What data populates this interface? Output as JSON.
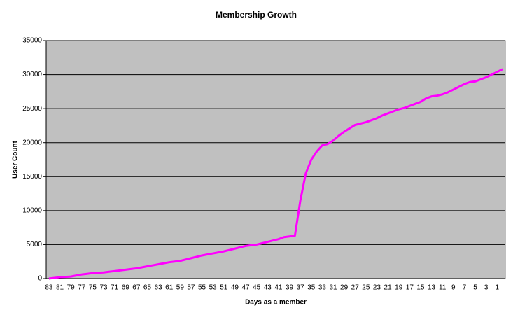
{
  "chart_data": {
    "type": "line",
    "title": "Membership Growth",
    "x_label": "Days as a member",
    "y_label": "User Count",
    "categories": [
      "83",
      null,
      "81",
      null,
      "79",
      null,
      "77",
      null,
      "75",
      null,
      "73",
      null,
      "71",
      null,
      "69",
      null,
      "67",
      null,
      "65",
      null,
      "63",
      null,
      "61",
      null,
      "59",
      null,
      "57",
      null,
      "55",
      null,
      "53",
      null,
      "51",
      null,
      "49",
      null,
      "47",
      null,
      "45",
      null,
      "43",
      null,
      "41",
      null,
      "39",
      null,
      "37",
      null,
      "35",
      null,
      "33",
      null,
      "31",
      null,
      "29",
      null,
      "27",
      null,
      "25",
      null,
      "23",
      null,
      "21",
      null,
      "19",
      null,
      "17",
      null,
      "15",
      null,
      "13",
      null,
      "11",
      null,
      "9",
      null,
      "7",
      null,
      "5",
      null,
      "3",
      null,
      "1",
      null
    ],
    "values": [
      0,
      100,
      200,
      250,
      300,
      450,
      600,
      700,
      800,
      850,
      900,
      1000,
      1100,
      1200,
      1300,
      1400,
      1500,
      1650,
      1800,
      1950,
      2100,
      2250,
      2400,
      2500,
      2600,
      2800,
      3000,
      3200,
      3400,
      3550,
      3700,
      3850,
      4000,
      4200,
      4400,
      4600,
      4800,
      4900,
      5000,
      5200,
      5400,
      5600,
      5800,
      6100,
      6200,
      6300,
      11500,
      15500,
      17500,
      18700,
      19600,
      19800,
      20300,
      21000,
      21600,
      22100,
      22600,
      22800,
      23000,
      23300,
      23600,
      24000,
      24300,
      24600,
      24900,
      25100,
      25400,
      25700,
      26000,
      26500,
      26800,
      26900,
      27100,
      27400,
      27800,
      28200,
      28600,
      28900,
      29000,
      29300,
      29600,
      30000,
      30400,
      30800
    ],
    "color": "#ff00ff",
    "ylim": [
      0,
      35000
    ],
    "yticks": [
      0,
      5000,
      10000,
      15000,
      20000,
      25000,
      30000,
      35000
    ],
    "grid": true
  }
}
